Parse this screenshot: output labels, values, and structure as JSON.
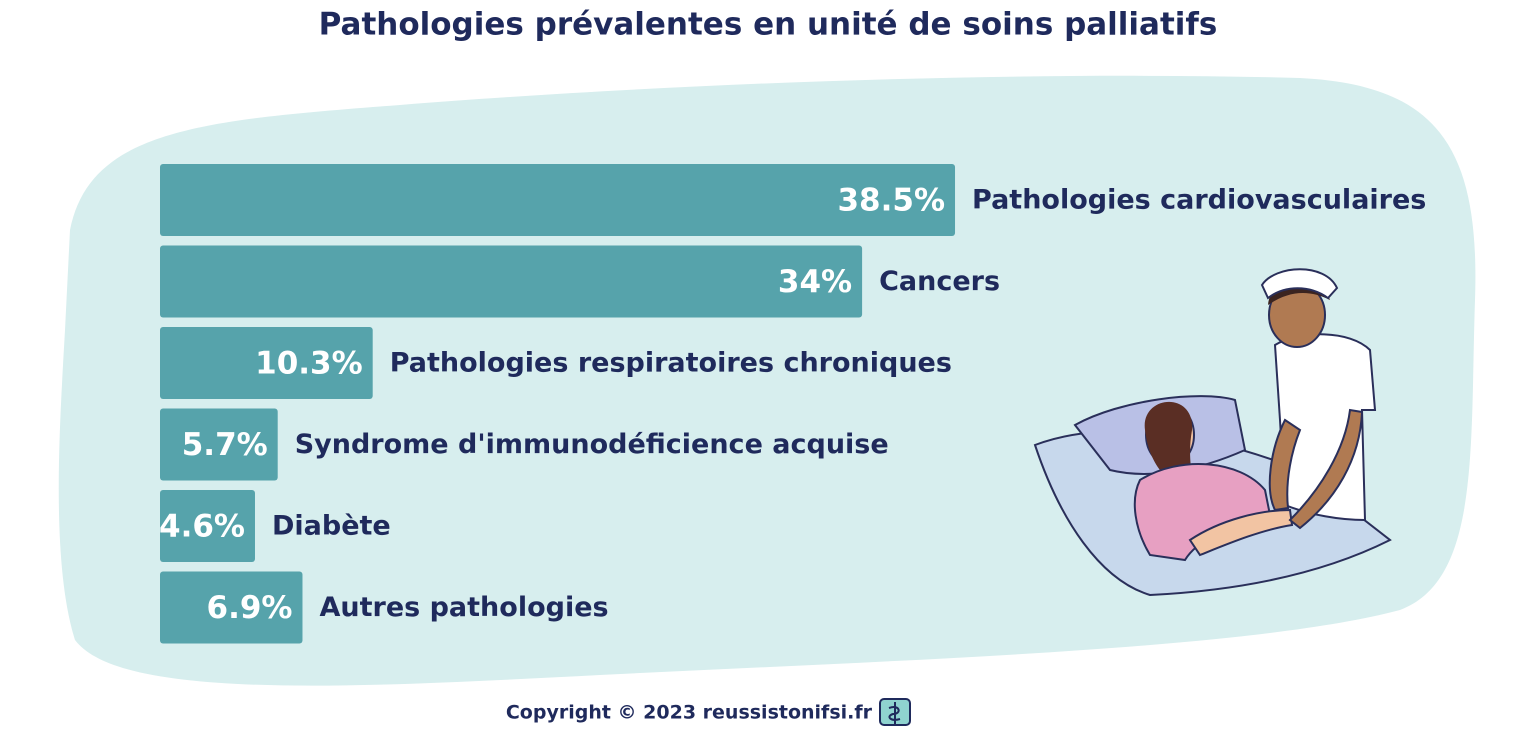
{
  "chart_data": {
    "type": "bar",
    "title": "Pathologies prévalentes en unité de soins palliatifs",
    "categories": [
      "Pathologies cardiovasculaires",
      "Cancers",
      "Pathologies respiratoires chroniques",
      "Syndrome d'immunodéficience acquise",
      "Diabète",
      "Autres pathologies"
    ],
    "values": [
      38.5,
      34,
      10.3,
      5.7,
      4.6,
      6.9
    ],
    "value_labels": [
      "38.5%",
      "34%",
      "10.3%",
      "5.7%",
      "4.6%",
      "6.9%"
    ],
    "color": "#56a3ab",
    "source": "Copyright © 2023 reussistonifsi.fr"
  }
}
